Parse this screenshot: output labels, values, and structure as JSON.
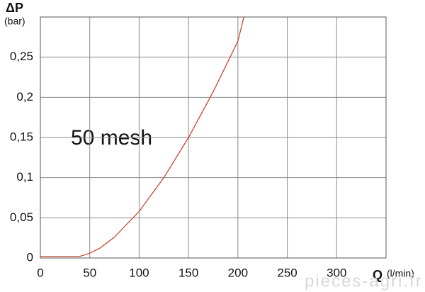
{
  "chart_data": {
    "type": "line",
    "y_label": "ΔP",
    "y_unit": "(bar)",
    "x_label": "Q",
    "x_unit": "(l/min)",
    "annotation": "50 mesh",
    "watermark": "pieces-agri.fr",
    "series": [
      {
        "name": "50 mesh",
        "color": "#c8472f",
        "x": [
          0,
          40,
          50,
          60,
          75,
          100,
          125,
          150,
          175,
          200,
          206
        ],
        "values": [
          0.002,
          0.002,
          0.006,
          0.012,
          0.026,
          0.058,
          0.1,
          0.15,
          0.207,
          0.27,
          0.3
        ]
      }
    ],
    "xlim": [
      0,
      350
    ],
    "xticks": [
      0,
      50,
      100,
      150,
      200,
      250,
      300
    ],
    "ylim": [
      0,
      0.3
    ],
    "yticks": [
      0,
      {
        "value": 0.05,
        "label": "0,05"
      },
      {
        "value": 0.1,
        "label": "0,1"
      },
      {
        "value": 0.15,
        "label": "0,15"
      },
      {
        "value": 0.2,
        "label": "0,2"
      },
      {
        "value": 0.25,
        "label": "0,25"
      }
    ],
    "grid": true
  }
}
